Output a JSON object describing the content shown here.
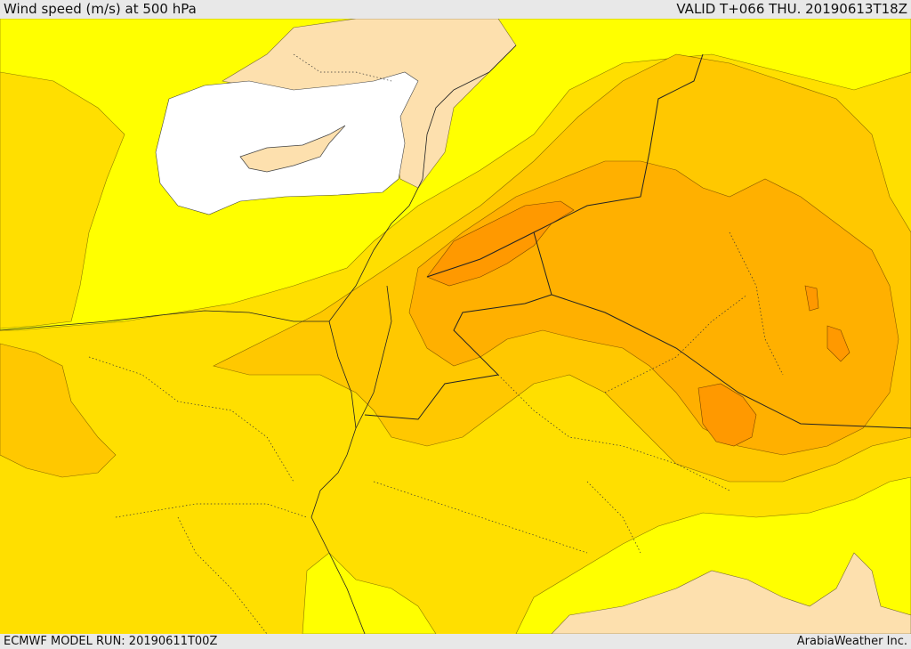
{
  "header": {
    "title": "Wind speed (m/s) at 500 hPa",
    "valid": "VALID T+066 THU. 20190613T18Z"
  },
  "footer": {
    "model_run": "ECMWF MODEL RUN: 20190611T00Z",
    "credit": "ArabiaWeather Inc."
  },
  "colors": {
    "light_yellow": "#ffff00",
    "yellow": "#ffdf00",
    "light_orange": "#ffc800",
    "orange": "#ffb000",
    "dark_orange": "#ff9900",
    "low_wind": "#fde0ae",
    "calm": "#ffffff"
  }
}
